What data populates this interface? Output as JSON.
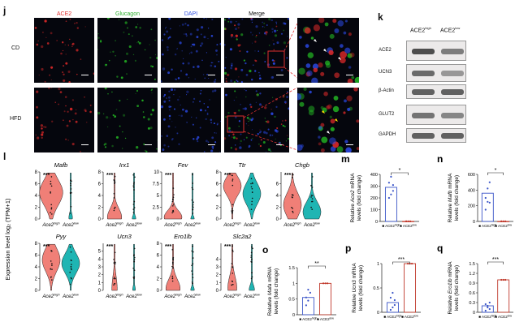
{
  "figure": {
    "panel_labels": {
      "j": "j",
      "k": "k",
      "l": "l",
      "m": "m",
      "n": "n",
      "o": "o",
      "p": "p",
      "q": "q"
    },
    "panel_j": {
      "channels": [
        {
          "label": "ACE2",
          "color": "#e03030"
        },
        {
          "label": "Glucagon",
          "color": "#30b030"
        },
        {
          "label": "DAPI",
          "color": "#3050e0"
        },
        {
          "label": "Merge",
          "color": "#111111"
        }
      ],
      "rows": [
        "CD",
        "HFD"
      ]
    },
    "panel_k": {
      "col_high_base": "ACE2",
      "col_high_sup": "high",
      "col_low_base": "ACE2",
      "col_low_sup": "low",
      "bands": [
        "ACE2",
        "UCN3",
        "β-Actin",
        "GLUT2",
        "GAPDH"
      ]
    },
    "panel_l": {
      "ylabel": "Expression level log₂ (TPM+1)",
      "group_labels": [
        "Ace2high",
        "Ace2low"
      ],
      "colors": {
        "high": "#f07f77",
        "low": "#1fb5b3"
      },
      "genes": [
        {
          "name": "Mafb",
          "ylim": [
            0,
            8
          ],
          "ticks": [
            0,
            2,
            4,
            6,
            8
          ],
          "sig": "***"
        },
        {
          "name": "Irx1",
          "ylim": [
            0,
            8
          ],
          "ticks": [
            0,
            2,
            4,
            6,
            8
          ],
          "sig": "***"
        },
        {
          "name": "Fev",
          "ylim": [
            0,
            10
          ],
          "ticks": [
            0.0,
            2.5,
            5.0,
            7.5,
            10.0
          ],
          "sig": "***"
        },
        {
          "name": "Ttr",
          "ylim": [
            0,
            8
          ],
          "ticks": [
            0,
            2,
            4,
            6,
            8
          ],
          "sig": "***"
        },
        {
          "name": "Chgb",
          "ylim": [
            0,
            8
          ],
          "ticks": [
            0,
            2,
            4,
            6
          ],
          "sig": "***"
        },
        {
          "name": "Pyy",
          "ylim": [
            0,
            8
          ],
          "ticks": [
            0,
            2,
            4,
            6,
            8
          ],
          "sig": "***"
        },
        {
          "name": "Ucn3",
          "ylim": [
            0,
            6
          ],
          "ticks": [
            0,
            1,
            2,
            3,
            4,
            5
          ],
          "sig": "***"
        },
        {
          "name": "Ero1lb",
          "ylim": [
            0,
            8
          ],
          "ticks": [
            0,
            2,
            4,
            6,
            8
          ],
          "sig": "***"
        },
        {
          "name": "Slc2a2",
          "ylim": [
            0,
            6
          ],
          "ticks": [
            0,
            1,
            2,
            3,
            4
          ],
          "sig": "***"
        }
      ]
    },
    "bar_panels": [
      {
        "id": "m",
        "gene": "Ace2",
        "ylabel_pre": "Relative ",
        "ylabel_post": " mRNA",
        "ylabel2": "levels (fold change)",
        "ylim": [
          0,
          400
        ],
        "ticks": [
          0,
          100,
          200,
          300,
          400
        ],
        "values": [
          290,
          1
        ],
        "sig": "*",
        "xlabels": [
          "ACE2high",
          "ACE2low"
        ]
      },
      {
        "id": "n",
        "gene": "Mafb",
        "ylabel_pre": "Relative ",
        "ylabel_post": " mRNA",
        "ylabel2": "levels (fold change)",
        "ylim": [
          0,
          600
        ],
        "ticks": [
          0,
          200,
          400,
          600
        ],
        "values": [
          360,
          1
        ],
        "sig": "*",
        "xlabels": [
          "ACE2high",
          "ACE2low"
        ]
      },
      {
        "id": "o",
        "gene": "Mafa",
        "ylabel_pre": "Relative ",
        "ylabel_post": " mRNA",
        "ylabel2": "levels (fold change)",
        "ylim": [
          0,
          1.5
        ],
        "ticks": [
          0.0,
          0.5,
          1.0,
          1.5
        ],
        "values": [
          0.55,
          1.0
        ],
        "sig": "**",
        "xlabels": [
          "ACE2high",
          "ACE2low"
        ]
      },
      {
        "id": "p",
        "gene": "Ucn3",
        "ylabel_pre": "Relative ",
        "ylabel_post": " mRNA",
        "ylabel2": "levels (fold change)",
        "ylim": [
          0,
          1.0
        ],
        "ticks": [
          0.0,
          0.5,
          1.0
        ],
        "values": [
          0.2,
          1.0
        ],
        "sig": "***",
        "xlabels": [
          "ACE2high",
          "ACE2low"
        ]
      },
      {
        "id": "q",
        "gene": "Ero1lb",
        "ylabel_pre": "Relative ",
        "ylabel_post": " mRNA",
        "ylabel2": "levels (fold change)",
        "ylim": [
          0,
          1.5
        ],
        "ticks": [
          0.0,
          0.3,
          0.6,
          0.9,
          1.2,
          1.5
        ],
        "values": [
          0.2,
          1.0
        ],
        "sig": "***",
        "xlabels": [
          "ACE2high",
          "ACE2low"
        ]
      }
    ]
  }
}
